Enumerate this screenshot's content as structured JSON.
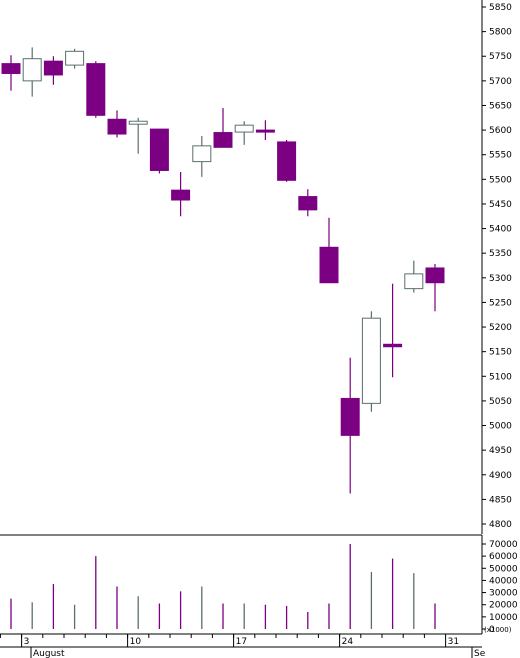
{
  "chart_data": [
    {
      "type": "candlestick",
      "xlabel": "",
      "ylabel": "",
      "ylim": [
        4775,
        5875
      ],
      "y_ticks": [
        4800,
        4850,
        4900,
        4950,
        5000,
        5050,
        5100,
        5150,
        5200,
        5250,
        5300,
        5350,
        5400,
        5450,
        5500,
        5550,
        5600,
        5650,
        5700,
        5750,
        5800,
        5850
      ],
      "x_tick_labels": [
        "3",
        "10",
        "17",
        "24",
        "31"
      ],
      "x_month_labels": [
        "August",
        "Se"
      ],
      "grid": false,
      "up_color": "#ffffff",
      "down_color": "#7b0082",
      "candles": [
        {
          "date": "Jul 31",
          "open": 5735,
          "high": 5752,
          "low": 5680,
          "close": 5715
        },
        {
          "date": "Aug 3",
          "open": 5700,
          "high": 5768,
          "low": 5668,
          "close": 5745
        },
        {
          "date": "Aug 4",
          "open": 5740,
          "high": 5750,
          "low": 5692,
          "close": 5712
        },
        {
          "date": "Aug 5",
          "open": 5732,
          "high": 5765,
          "low": 5725,
          "close": 5760
        },
        {
          "date": "Aug 6",
          "open": 5735,
          "high": 5740,
          "low": 5625,
          "close": 5630
        },
        {
          "date": "Aug 7",
          "open": 5622,
          "high": 5640,
          "low": 5585,
          "close": 5592
        },
        {
          "date": "Aug 10",
          "open": 5612,
          "high": 5625,
          "low": 5552,
          "close": 5618
        },
        {
          "date": "Aug 11",
          "open": 5602,
          "high": 5602,
          "low": 5512,
          "close": 5518
        },
        {
          "date": "Aug 12",
          "open": 5478,
          "high": 5515,
          "low": 5425,
          "close": 5458
        },
        {
          "date": "Aug 13",
          "open": 5536,
          "high": 5588,
          "low": 5505,
          "close": 5568
        },
        {
          "date": "Aug 14",
          "open": 5595,
          "high": 5645,
          "low": 5565,
          "close": 5565
        },
        {
          "date": "Aug 17",
          "open": 5596,
          "high": 5618,
          "low": 5570,
          "close": 5610
        },
        {
          "date": "Aug 18",
          "open": 5600,
          "high": 5620,
          "low": 5580,
          "close": 5596
        },
        {
          "date": "Aug 19",
          "open": 5576,
          "high": 5580,
          "low": 5495,
          "close": 5498
        },
        {
          "date": "Aug 20",
          "open": 5465,
          "high": 5480,
          "low": 5425,
          "close": 5438
        },
        {
          "date": "Aug 21",
          "open": 5362,
          "high": 5422,
          "low": 5290,
          "close": 5290
        },
        {
          "date": "Aug 24",
          "open": 5055,
          "high": 5138,
          "low": 4862,
          "close": 4980
        },
        {
          "date": "Aug 25",
          "open": 5045,
          "high": 5232,
          "low": 5028,
          "close": 5218
        },
        {
          "date": "Aug 26",
          "open": 5165,
          "high": 5288,
          "low": 5098,
          "close": 5160
        },
        {
          "date": "Aug 27",
          "open": 5278,
          "high": 5335,
          "low": 5270,
          "close": 5308
        },
        {
          "date": "Aug 28",
          "open": 5320,
          "high": 5328,
          "low": 5232,
          "close": 5290
        }
      ]
    },
    {
      "type": "bar",
      "ylabel": "",
      "unit_label": "(x1000)",
      "ylim": [
        0,
        72000
      ],
      "y_ticks": [
        0,
        10000,
        20000,
        30000,
        40000,
        50000,
        60000,
        70000
      ],
      "series_color": "#7b0082",
      "values": [
        25000,
        22000,
        37000,
        20000,
        60000,
        35000,
        27000,
        21000,
        31000,
        35000,
        21000,
        21000,
        20000,
        19000,
        14000,
        21000,
        70000,
        47000,
        58000,
        46000,
        21000
      ]
    }
  ]
}
